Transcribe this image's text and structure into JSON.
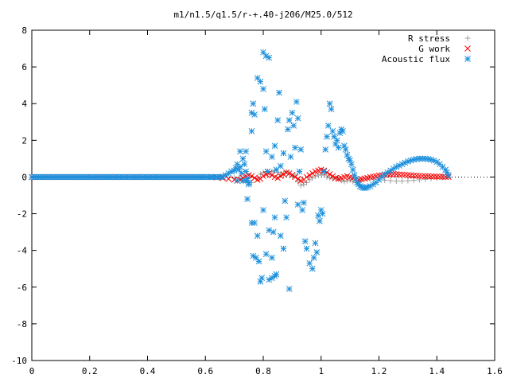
{
  "chart_data": {
    "type": "scatter",
    "title": "m1/n1.5/q1.5/r-+.40-j206/M25.0/512",
    "xlabel": "",
    "ylabel": "",
    "xlim": [
      0,
      1.6
    ],
    "ylim": [
      -10,
      8
    ],
    "x_ticks": [
      "0",
      "0.2",
      "0.4",
      "0.6",
      "0.8",
      "1",
      "1.2",
      "1.4",
      "1.6"
    ],
    "y_ticks": [
      "8",
      "6",
      "4",
      "2",
      "0",
      "-2",
      "-4",
      "-6",
      "-8",
      "-10"
    ],
    "grid": false,
    "legend_position": "top-right",
    "series": [
      {
        "name": "R stress",
        "marker": "+",
        "color": "#a0a0a0",
        "points": [
          [
            0.7,
            -0.05
          ],
          [
            0.72,
            -0.1
          ],
          [
            0.74,
            -0.18
          ],
          [
            0.76,
            -0.3
          ],
          [
            0.78,
            -0.05
          ],
          [
            0.79,
            0.15
          ],
          [
            0.8,
            0.25
          ],
          [
            0.81,
            0.3
          ],
          [
            0.82,
            0.2
          ],
          [
            0.83,
            0.3
          ],
          [
            0.84,
            0.35
          ],
          [
            0.85,
            0.25
          ],
          [
            0.86,
            0.15
          ],
          [
            0.87,
            0.2
          ],
          [
            0.88,
            0.3
          ],
          [
            0.89,
            0.2
          ],
          [
            0.9,
            0.05
          ],
          [
            0.91,
            0.1
          ],
          [
            0.92,
            -0.25
          ],
          [
            0.93,
            -0.45
          ],
          [
            0.94,
            -0.4
          ],
          [
            0.95,
            -0.3
          ],
          [
            0.96,
            -0.15
          ],
          [
            0.97,
            -0.05
          ],
          [
            0.98,
            0.05
          ],
          [
            0.99,
            0.1
          ],
          [
            1.0,
            0.15
          ],
          [
            1.01,
            0.1
          ],
          [
            1.02,
            0.0
          ],
          [
            1.03,
            -0.05
          ],
          [
            1.04,
            -0.1
          ],
          [
            1.05,
            -0.05
          ],
          [
            1.06,
            -0.1
          ],
          [
            1.07,
            -0.2
          ],
          [
            1.08,
            -0.25
          ],
          [
            1.09,
            -0.2
          ],
          [
            1.1,
            -0.15
          ],
          [
            1.11,
            -0.25
          ],
          [
            1.12,
            -0.3
          ],
          [
            1.13,
            -0.2
          ],
          [
            1.14,
            -0.15
          ],
          [
            1.16,
            -0.1
          ],
          [
            1.18,
            -0.12
          ],
          [
            1.2,
            -0.15
          ],
          [
            1.22,
            -0.18
          ],
          [
            1.24,
            -0.2
          ],
          [
            1.26,
            -0.22
          ],
          [
            1.28,
            -0.22
          ],
          [
            1.3,
            -0.2
          ],
          [
            1.32,
            -0.18
          ],
          [
            1.34,
            -0.15
          ],
          [
            1.36,
            -0.12
          ],
          [
            1.38,
            -0.08
          ],
          [
            1.4,
            -0.05
          ],
          [
            1.42,
            -0.02
          ],
          [
            1.44,
            0.0
          ]
        ]
      },
      {
        "name": "G work",
        "marker": "x",
        "color": "#ff0000",
        "points": [
          [
            0.6,
            0.0
          ],
          [
            0.62,
            0.0
          ],
          [
            0.64,
            -0.02
          ],
          [
            0.66,
            -0.05
          ],
          [
            0.68,
            -0.1
          ],
          [
            0.7,
            -0.15
          ],
          [
            0.71,
            -0.2
          ],
          [
            0.72,
            -0.15
          ],
          [
            0.73,
            -0.05
          ],
          [
            0.74,
            0.05
          ],
          [
            0.75,
            0.1
          ],
          [
            0.76,
            0.05
          ],
          [
            0.77,
            -0.05
          ],
          [
            0.78,
            -0.15
          ],
          [
            0.79,
            -0.1
          ],
          [
            0.8,
            0.05
          ],
          [
            0.81,
            0.15
          ],
          [
            0.82,
            0.2
          ],
          [
            0.83,
            0.1
          ],
          [
            0.84,
            0.0
          ],
          [
            0.85,
            -0.05
          ],
          [
            0.86,
            0.05
          ],
          [
            0.87,
            0.15
          ],
          [
            0.88,
            0.25
          ],
          [
            0.89,
            0.2
          ],
          [
            0.9,
            0.1
          ],
          [
            0.91,
            0.0
          ],
          [
            0.92,
            -0.1
          ],
          [
            0.93,
            -0.2
          ],
          [
            0.94,
            -0.15
          ],
          [
            0.95,
            0.0
          ],
          [
            0.96,
            0.1
          ],
          [
            0.97,
            0.2
          ],
          [
            0.98,
            0.3
          ],
          [
            0.99,
            0.35
          ],
          [
            1.0,
            0.4
          ],
          [
            1.01,
            0.35
          ],
          [
            1.02,
            0.25
          ],
          [
            1.03,
            0.15
          ],
          [
            1.04,
            0.05
          ],
          [
            1.05,
            -0.05
          ],
          [
            1.06,
            -0.1
          ],
          [
            1.07,
            -0.05
          ],
          [
            1.08,
            0.0
          ],
          [
            1.09,
            0.05
          ],
          [
            1.1,
            0.0
          ],
          [
            1.11,
            -0.05
          ],
          [
            1.12,
            -0.1
          ],
          [
            1.13,
            -0.15
          ],
          [
            1.14,
            -0.12
          ],
          [
            1.15,
            -0.08
          ],
          [
            1.16,
            -0.05
          ],
          [
            1.17,
            0.0
          ],
          [
            1.18,
            0.02
          ],
          [
            1.19,
            0.05
          ],
          [
            1.2,
            0.08
          ],
          [
            1.21,
            0.1
          ],
          [
            1.22,
            0.12
          ],
          [
            1.23,
            0.14
          ],
          [
            1.24,
            0.15
          ],
          [
            1.25,
            0.16
          ],
          [
            1.26,
            0.15
          ],
          [
            1.27,
            0.14
          ],
          [
            1.28,
            0.13
          ],
          [
            1.29,
            0.12
          ],
          [
            1.3,
            0.1
          ],
          [
            1.31,
            0.09
          ],
          [
            1.32,
            0.08
          ],
          [
            1.33,
            0.07
          ],
          [
            1.34,
            0.06
          ],
          [
            1.35,
            0.05
          ],
          [
            1.36,
            0.04
          ],
          [
            1.37,
            0.04
          ],
          [
            1.38,
            0.03
          ],
          [
            1.39,
            0.03
          ],
          [
            1.4,
            0.02
          ],
          [
            1.41,
            0.02
          ],
          [
            1.42,
            0.02
          ],
          [
            1.43,
            0.01
          ],
          [
            1.44,
            0.01
          ]
        ]
      },
      {
        "name": "Acoustic flux",
        "marker": "*",
        "color": "#1e90dc",
        "points": [
          [
            0.66,
            0.02
          ],
          [
            0.67,
            0.1
          ],
          [
            0.68,
            0.2
          ],
          [
            0.69,
            0.3
          ],
          [
            0.7,
            0.35
          ],
          [
            0.705,
            0.5
          ],
          [
            0.71,
            0.7
          ],
          [
            0.715,
            0.4
          ],
          [
            0.72,
            0.55
          ],
          [
            0.725,
            0.2
          ],
          [
            0.73,
            -0.2
          ],
          [
            0.735,
            0.7
          ],
          [
            0.74,
            0.3
          ],
          [
            0.745,
            -0.1
          ],
          [
            0.75,
            -0.3
          ],
          [
            0.72,
            1.4
          ],
          [
            0.73,
            1.0
          ],
          [
            0.71,
            -0.2
          ],
          [
            0.74,
            1.4
          ],
          [
            0.74,
            -0.2
          ],
          [
            0.745,
            -1.2
          ],
          [
            0.75,
            -0.4
          ],
          [
            0.76,
            3.5
          ],
          [
            0.765,
            4.0
          ],
          [
            0.77,
            3.4
          ],
          [
            0.76,
            2.5
          ],
          [
            0.76,
            -2.5
          ],
          [
            0.77,
            -2.5
          ],
          [
            0.765,
            -4.3
          ],
          [
            0.775,
            -4.4
          ],
          [
            0.78,
            -3.2
          ],
          [
            0.785,
            -4.6
          ],
          [
            0.79,
            -5.7
          ],
          [
            0.795,
            -5.5
          ],
          [
            0.78,
            5.4
          ],
          [
            0.79,
            5.2
          ],
          [
            0.8,
            4.8
          ],
          [
            0.8,
            6.8
          ],
          [
            0.81,
            6.6
          ],
          [
            0.82,
            6.5
          ],
          [
            0.805,
            3.7
          ],
          [
            0.81,
            1.4
          ],
          [
            0.815,
            0.3
          ],
          [
            0.8,
            -1.8
          ],
          [
            0.81,
            -4.2
          ],
          [
            0.82,
            -5.6
          ],
          [
            0.83,
            -5.5
          ],
          [
            0.83,
            -4.4
          ],
          [
            0.84,
            -5.4
          ],
          [
            0.845,
            -5.3
          ],
          [
            0.82,
            -2.9
          ],
          [
            0.835,
            -3.0
          ],
          [
            0.84,
            -2.2
          ],
          [
            0.83,
            1.1
          ],
          [
            0.84,
            1.7
          ],
          [
            0.845,
            0.4
          ],
          [
            0.85,
            3.1
          ],
          [
            0.855,
            4.6
          ],
          [
            0.86,
            0.6
          ],
          [
            0.86,
            -3.2
          ],
          [
            0.87,
            -3.9
          ],
          [
            0.87,
            1.3
          ],
          [
            0.875,
            -1.3
          ],
          [
            0.88,
            -2.2
          ],
          [
            0.89,
            -6.1
          ],
          [
            0.885,
            2.6
          ],
          [
            0.89,
            3.1
          ],
          [
            0.895,
            1.1
          ],
          [
            0.9,
            3.5
          ],
          [
            0.905,
            2.8
          ],
          [
            0.91,
            1.6
          ],
          [
            0.915,
            4.1
          ],
          [
            0.92,
            3.2
          ],
          [
            0.92,
            -1.5
          ],
          [
            0.925,
            0.3
          ],
          [
            0.93,
            1.5
          ],
          [
            0.935,
            -1.8
          ],
          [
            0.94,
            -1.4
          ],
          [
            0.945,
            -3.5
          ],
          [
            0.95,
            -3.9
          ],
          [
            0.96,
            -4.7
          ],
          [
            0.97,
            -5.0
          ],
          [
            0.975,
            -4.4
          ],
          [
            0.98,
            -3.6
          ],
          [
            0.985,
            -4.1
          ],
          [
            0.99,
            -2.1
          ],
          [
            0.995,
            -2.4
          ],
          [
            1.0,
            -1.8
          ],
          [
            1.005,
            -2.0
          ],
          [
            1.01,
            0.3
          ],
          [
            1.015,
            1.5
          ],
          [
            1.02,
            2.2
          ],
          [
            1.025,
            2.8
          ],
          [
            1.03,
            4.0
          ],
          [
            1.035,
            3.7
          ],
          [
            1.04,
            2.5
          ],
          [
            1.045,
            2.2
          ],
          [
            1.05,
            1.8
          ],
          [
            1.055,
            2.0
          ],
          [
            1.06,
            1.6
          ],
          [
            1.065,
            2.4
          ],
          [
            1.07,
            2.6
          ],
          [
            1.075,
            2.5
          ],
          [
            1.08,
            1.7
          ],
          [
            1.085,
            1.5
          ],
          [
            1.09,
            1.2
          ],
          [
            1.095,
            1.0
          ],
          [
            1.1,
            0.9
          ],
          [
            1.105,
            0.7
          ],
          [
            1.11,
            0.4
          ],
          [
            1.115,
            0.1
          ],
          [
            1.12,
            -0.1
          ],
          [
            1.125,
            -0.3
          ],
          [
            1.13,
            -0.4
          ],
          [
            1.135,
            -0.5
          ],
          [
            1.14,
            -0.55
          ],
          [
            1.145,
            -0.58
          ],
          [
            1.15,
            -0.6
          ],
          [
            1.155,
            -0.58
          ],
          [
            1.16,
            -0.55
          ],
          [
            1.17,
            -0.5
          ],
          [
            1.18,
            -0.4
          ],
          [
            1.19,
            -0.3
          ],
          [
            1.2,
            -0.15
          ],
          [
            1.21,
            0.0
          ],
          [
            1.22,
            0.15
          ],
          [
            1.23,
            0.25
          ],
          [
            1.24,
            0.35
          ],
          [
            1.25,
            0.45
          ],
          [
            1.26,
            0.55
          ],
          [
            1.27,
            0.62
          ],
          [
            1.28,
            0.7
          ],
          [
            1.29,
            0.78
          ],
          [
            1.3,
            0.85
          ],
          [
            1.31,
            0.9
          ],
          [
            1.32,
            0.95
          ],
          [
            1.33,
            0.98
          ],
          [
            1.34,
            1.0
          ],
          [
            1.35,
            1.0
          ],
          [
            1.36,
            1.0
          ],
          [
            1.37,
            0.98
          ],
          [
            1.38,
            0.95
          ],
          [
            1.39,
            0.9
          ],
          [
            1.4,
            0.82
          ],
          [
            1.41,
            0.7
          ],
          [
            1.42,
            0.55
          ],
          [
            1.43,
            0.4
          ],
          [
            1.435,
            0.25
          ],
          [
            1.44,
            0.1
          ]
        ]
      }
    ]
  }
}
